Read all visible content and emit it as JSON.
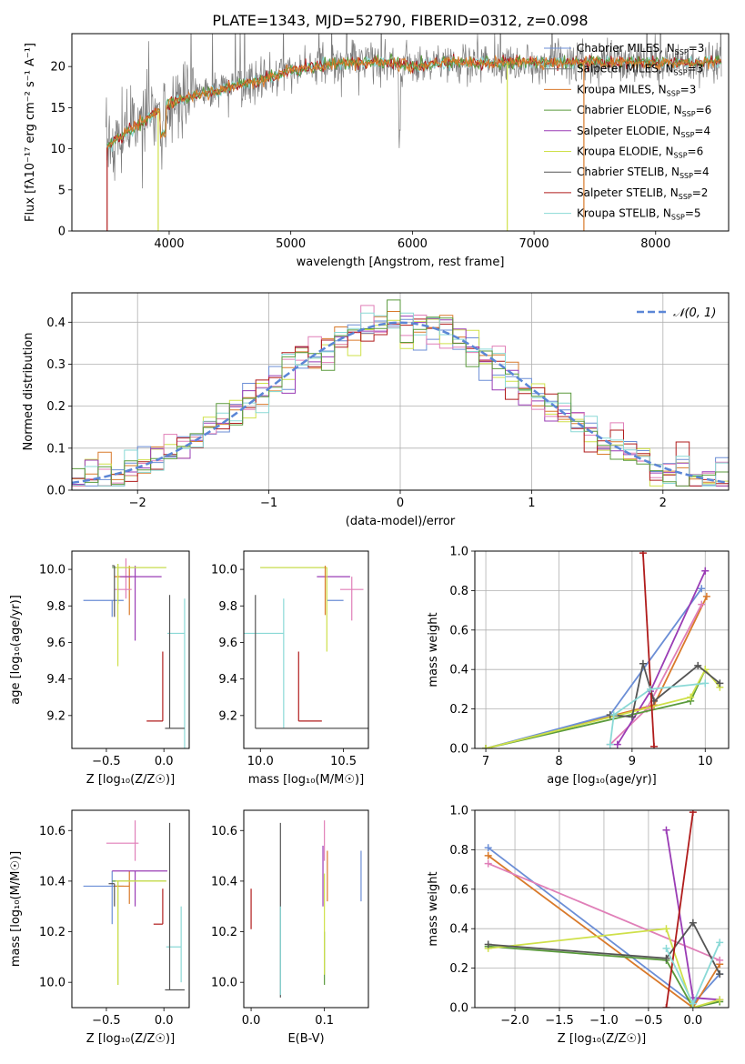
{
  "figure_title": "PLATE=1343, MJD=52790, FIBERID=0312, z=0.098",
  "colors": {
    "Chabrier MILES": "#6b8ed6",
    "Salpeter MILES": "#7b7b7b",
    "Kroupa MILES": "#d97a2b",
    "Chabrier ELODIE": "#5a9a3c",
    "Salpeter ELODIE": "#9a3cb5",
    "Kroupa ELODIE": "#cfe04a",
    "Chabrier STELIB": "#555555",
    "Salpeter STELIB": "#b01c1c",
    "Kroupa STELIB": "#8ad9d6",
    "pink": "#e07fb8",
    "normal": "#5b86d6"
  },
  "chart_data": [
    {
      "type": "line",
      "xlabel": "wavelength [Angstrom, rest frame]",
      "ylabel": "Flux [fλ10⁻¹⁷ erg cm⁻² s⁻¹ A⁻¹]",
      "xlim": [
        3200,
        8600
      ],
      "ylim": [
        0,
        24
      ],
      "xticks": [
        4000,
        5000,
        6000,
        7000,
        8000
      ],
      "yticks": [
        0,
        5,
        10,
        15,
        20
      ],
      "legend_position": "right",
      "continuum": {
        "x": [
          3480,
          3600,
          3800,
          4000,
          4200,
          4500,
          4800,
          5000,
          5200,
          5500,
          5800,
          6000,
          6300,
          6600,
          7000,
          7400,
          7800,
          8200,
          8500
        ],
        "y": [
          10,
          11.5,
          13.5,
          15.5,
          16.5,
          17.5,
          18.5,
          19.5,
          20,
          20.5,
          20.5,
          20,
          20.5,
          20.5,
          20.5,
          20.5,
          20.5,
          20.5,
          20.5
        ]
      },
      "series": [
        {
          "name": "Chabrier MILES, N$_{SSP}$=3"
        },
        {
          "name": "Salpeter MILES, N$_{SSP}$=3"
        },
        {
          "name": "Kroupa MILES, N$_{SSP}$=3"
        },
        {
          "name": "Chabrier ELODIE, N$_{SSP}$=6"
        },
        {
          "name": "Salpeter ELODIE, N$_{SSP}$=4"
        },
        {
          "name": "Kroupa ELODIE, N$_{SSP}$=6"
        },
        {
          "name": "Chabrier STELIB, N$_{SSP}$=4"
        },
        {
          "name": "Salpeter STELIB, N$_{SSP}$=2"
        },
        {
          "name": "Kroupa STELIB, N$_{SSP}$=5"
        }
      ]
    },
    {
      "type": "histogram",
      "xlabel": "(data-model)/error",
      "ylabel": "Normed distribution",
      "xlim": [
        -2.5,
        2.5
      ],
      "ylim": [
        0,
        0.47
      ],
      "xticks": [
        -2,
        -1,
        0,
        1,
        2
      ],
      "yticks": [
        0.0,
        0.1,
        0.2,
        0.3,
        0.4
      ],
      "grid": true,
      "legend": "𝒩(0, 1)",
      "legend_position": "top-right",
      "bin_width": 0.1
    },
    {
      "type": "errorbar",
      "xlabel": "Z [log₁₀(Z/Z☉)]",
      "ylabel": "age  [log₁₀(age/yr)]",
      "xlim": [
        -0.8,
        0.22
      ],
      "ylim": [
        9.02,
        10.1
      ],
      "xticks": [
        -0.5,
        0.0
      ],
      "yticks": [
        9.2,
        9.4,
        9.6,
        9.8,
        10.0
      ],
      "points": [
        {
          "color": "Chabrier MILES",
          "x": -0.45,
          "y": 9.83,
          "xerr": [
            0.25,
            0.1
          ],
          "yerr": [
            0.09,
            0.0
          ]
        },
        {
          "color": "Kroupa MILES",
          "x": -0.3,
          "y": 9.96,
          "xerr": [
            0.13,
            0.02
          ],
          "yerr": [
            0.21,
            0.06
          ]
        },
        {
          "color": "pink",
          "x": -0.33,
          "y": 9.89,
          "xerr": [
            0.1,
            0.05
          ],
          "yerr": [
            0.05,
            0.17
          ]
        },
        {
          "color": "Salpeter ELODIE",
          "x": -0.25,
          "y": 9.96,
          "xerr": [
            0.13,
            0.23
          ],
          "yerr": [
            0.35,
            0.06
          ]
        },
        {
          "color": "Chabrier ELODIE",
          "x": -0.4,
          "y": 10.01,
          "xerr": [
            0.05,
            0.42
          ],
          "yerr": [
            0.2,
            0.02
          ]
        },
        {
          "color": "Kroupa ELODIE",
          "x": -0.4,
          "y": 10.01,
          "xerr": [
            0.02,
            0.42
          ],
          "yerr": [
            0.54,
            0.02
          ]
        },
        {
          "color": "Chabrier STELIB",
          "x": -0.43,
          "y": 10.02,
          "xerr": [
            0.02,
            0.0
          ],
          "yerr": [
            0.28,
            0.0
          ]
        },
        {
          "color": "Kroupa STELIB",
          "x": 0.18,
          "y": 9.65,
          "xerr": [
            0.15,
            0.0
          ],
          "yerr": [
            0.66,
            0.19
          ]
        },
        {
          "color": "Salpeter STELIB",
          "x": -0.01,
          "y": 9.17,
          "xerr": [
            0.14,
            0.0
          ],
          "yerr": [
            0.0,
            0.38
          ]
        },
        {
          "color": "Chabrier STELIB",
          "x": 0.05,
          "y": 9.13,
          "xerr": [
            0.04,
            0.13
          ],
          "yerr": [
            0.0,
            0.73
          ]
        }
      ]
    },
    {
      "type": "errorbar",
      "xlabel": "mass [log₁₀(M/M☉)]",
      "xlim": [
        9.9,
        10.65
      ],
      "ylim": [
        9.02,
        10.1
      ],
      "xticks": [
        10.0,
        10.5
      ],
      "yticks": [
        9.2,
        9.4,
        9.6,
        9.8,
        10.0
      ],
      "points": [
        {
          "color": "Chabrier MILES",
          "x": 10.5,
          "y": 9.83,
          "xerr": [
            0.1,
            0.0
          ],
          "yerr": [
            0.0,
            0.0
          ]
        },
        {
          "color": "Salpeter ELODIE",
          "x": 10.44,
          "y": 9.96,
          "xerr": [
            0.1,
            0.1
          ],
          "yerr": [
            0.0,
            0.0
          ]
        },
        {
          "color": "Chabrier ELODIE",
          "x": 10.4,
          "y": 10.01,
          "xerr": [
            0.4,
            0.0
          ],
          "yerr": [
            0.0,
            0.0
          ]
        },
        {
          "color": "Kroupa ELODIE",
          "x": 10.4,
          "y": 10.01,
          "xerr": [
            0.4,
            0.0
          ],
          "yerr": [
            0.46,
            0.0
          ]
        },
        {
          "color": "pink",
          "x": 10.55,
          "y": 9.89,
          "xerr": [
            0.07,
            0.07
          ],
          "yerr": [
            0.17,
            0.07
          ]
        },
        {
          "color": "Kroupa MILES",
          "x": 10.39,
          "y": 9.96,
          "xerr": [
            0.0,
            0.0
          ],
          "yerr": [
            0.21,
            0.06
          ]
        },
        {
          "color": "Kroupa STELIB",
          "x": 10.14,
          "y": 9.65,
          "xerr": [
            0.4,
            0.0
          ],
          "yerr": [
            0.52,
            0.19
          ]
        },
        {
          "color": "Salpeter STELIB",
          "x": 10.23,
          "y": 9.17,
          "xerr": [
            0.0,
            0.14
          ],
          "yerr": [
            0.0,
            0.38
          ]
        },
        {
          "color": "Chabrier STELIB",
          "x": 9.97,
          "y": 9.13,
          "xerr": [
            0.0,
            0.71
          ],
          "yerr": [
            0.0,
            0.73
          ]
        }
      ]
    },
    {
      "type": "line",
      "xlabel": "age  [log₁₀(age/yr)]",
      "ylabel": "mass weight",
      "xlim": [
        6.85,
        10.32
      ],
      "ylim": [
        0,
        1
      ],
      "xticks": [
        7,
        8,
        9,
        10
      ],
      "yticks": [
        0.0,
        0.2,
        0.4,
        0.6,
        0.8,
        1.0
      ],
      "grid": true,
      "series": [
        {
          "color": "Kroupa MILES",
          "x": [
            7.0,
            9.3,
            10.02
          ],
          "y": [
            0.0,
            0.22,
            0.77
          ]
        },
        {
          "color": "Chabrier MILES",
          "x": [
            7.0,
            8.7,
            9.95
          ],
          "y": [
            0.0,
            0.17,
            0.81
          ]
        },
        {
          "color": "pink",
          "x": [
            8.7,
            9.2,
            9.95
          ],
          "y": [
            0.02,
            0.2,
            0.73
          ]
        },
        {
          "color": "Salpeter ELODIE",
          "x": [
            8.8,
            9.25,
            10.0
          ],
          "y": [
            0.02,
            0.29,
            0.9
          ]
        },
        {
          "color": "Chabrier ELODIE",
          "x": [
            7.0,
            9.8,
            10.0
          ],
          "y": [
            0.0,
            0.24,
            0.4
          ]
        },
        {
          "color": "Kroupa ELODIE",
          "x": [
            7.0,
            9.8,
            10.0,
            10.2
          ],
          "y": [
            0.0,
            0.26,
            0.4,
            0.31
          ]
        },
        {
          "color": "Chabrier STELIB",
          "x": [
            8.7,
            9.0,
            9.15,
            9.3,
            9.9,
            10.2
          ],
          "y": [
            0.17,
            0.16,
            0.43,
            0.24,
            0.42,
            0.33
          ]
        },
        {
          "color": "Salpeter STELIB",
          "x": [
            9.15,
            9.3
          ],
          "y": [
            0.99,
            0.01
          ]
        },
        {
          "color": "Kroupa STELIB",
          "x": [
            8.7,
            8.75,
            9.25,
            10.0
          ],
          "y": [
            0.02,
            0.17,
            0.3,
            0.33
          ]
        }
      ]
    },
    {
      "type": "errorbar",
      "xlabel": "Z [log₁₀(Z/Z☉)]",
      "ylabel": "mass [log₁₀(M/M☉)]",
      "xlim": [
        -0.8,
        0.22
      ],
      "ylim": [
        9.9,
        10.68
      ],
      "xticks": [
        -0.5,
        0.0
      ],
      "yticks": [
        10.0,
        10.2,
        10.4,
        10.6
      ],
      "points": [
        {
          "color": "Chabrier MILES",
          "x": -0.45,
          "y": 10.38,
          "xerr": [
            0.25,
            0.1
          ],
          "yerr": [
            0.15,
            0.06
          ]
        },
        {
          "color": "Kroupa MILES",
          "x": -0.3,
          "y": 10.38,
          "xerr": [
            0.13,
            0.0
          ],
          "yerr": [
            0.07,
            0.06
          ]
        },
        {
          "color": "pink",
          "x": -0.25,
          "y": 10.55,
          "xerr": [
            0.25,
            0.03
          ],
          "yerr": [
            0.07,
            0.09
          ]
        },
        {
          "color": "Salpeter ELODIE",
          "x": -0.25,
          "y": 10.44,
          "xerr": [
            0.2,
            0.28
          ],
          "yerr": [
            0.14,
            0.0
          ]
        },
        {
          "color": "Chabrier ELODIE",
          "x": -0.4,
          "y": 10.4,
          "xerr": [
            0.05,
            0.42
          ],
          "yerr": [
            0.41,
            0.0
          ]
        },
        {
          "color": "Kroupa ELODIE",
          "x": -0.4,
          "y": 10.4,
          "xerr": [
            0.02,
            0.42
          ],
          "yerr": [
            0.41,
            0.0
          ]
        },
        {
          "color": "Chabrier STELIB",
          "x": -0.43,
          "y": 10.39,
          "xerr": [
            0.05,
            0.0
          ],
          "yerr": [
            0.09,
            0.0
          ]
        },
        {
          "color": "Kroupa STELIB",
          "x": 0.15,
          "y": 10.14,
          "xerr": [
            0.13,
            0.0
          ],
          "yerr": [
            0.14,
            0.16
          ]
        },
        {
          "color": "Salpeter STELIB",
          "x": -0.01,
          "y": 10.23,
          "xerr": [
            0.08,
            0.0
          ],
          "yerr": [
            0.0,
            0.14
          ]
        },
        {
          "color": "Chabrier STELIB",
          "x": 0.05,
          "y": 9.97,
          "xerr": [
            0.04,
            0.13
          ],
          "yerr": [
            0.0,
            0.66
          ]
        }
      ]
    },
    {
      "type": "errorbar",
      "xlabel": "E(B-V)",
      "xlim": [
        -0.01,
        0.16
      ],
      "ylim": [
        9.9,
        10.68
      ],
      "xticks": [
        0.0,
        0.1
      ],
      "yticks": [
        10.0,
        10.2,
        10.4,
        10.6
      ],
      "points": [
        {
          "color": "Salpeter STELIB",
          "x": 0.0,
          "y": 10.29,
          "xerr": [
            0.0,
            0.0
          ],
          "yerr": [
            0.08,
            0.08
          ]
        },
        {
          "color": "Chabrier STELIB",
          "x": 0.04,
          "y": 10.2,
          "xerr": [
            0.0,
            0.0
          ],
          "yerr": [
            0.26,
            0.43
          ]
        },
        {
          "color": "Kroupa STELIB",
          "x": 0.04,
          "y": 10.1,
          "xerr": [
            0.0,
            0.0
          ],
          "yerr": [
            0.15,
            0.2
          ]
        },
        {
          "color": "pink",
          "x": 0.1,
          "y": 10.55,
          "xerr": [
            0.0,
            0.0
          ],
          "yerr": [
            0.07,
            0.09
          ]
        },
        {
          "color": "Salpeter ELODIE",
          "x": 0.098,
          "y": 10.44,
          "xerr": [
            0.0,
            0.0
          ],
          "yerr": [
            0.14,
            0.1
          ]
        },
        {
          "color": "Kroupa MILES",
          "x": 0.104,
          "y": 10.4,
          "xerr": [
            0.0,
            0.0
          ],
          "yerr": [
            0.08,
            0.12
          ]
        },
        {
          "color": "Chabrier ELODIE",
          "x": 0.1,
          "y": 10.2,
          "xerr": [
            0.0,
            0.0
          ],
          "yerr": [
            0.21,
            0.0
          ]
        },
        {
          "color": "Kroupa ELODIE",
          "x": 0.1,
          "y": 10.2,
          "xerr": [
            0.0,
            0.0
          ],
          "yerr": [
            0.17,
            0.23
          ]
        },
        {
          "color": "Chabrier MILES",
          "x": 0.15,
          "y": 10.42,
          "xerr": [
            0.0,
            0.0
          ],
          "yerr": [
            0.1,
            0.1
          ]
        }
      ]
    },
    {
      "type": "line",
      "xlabel": "Z [log₁₀(Z/Z☉)]",
      "ylabel": "mass weight",
      "xlim": [
        -2.45,
        0.4
      ],
      "ylim": [
        0,
        1
      ],
      "xticks": [
        -2.0,
        -1.5,
        -1.0,
        -0.5,
        0.0
      ],
      "yticks": [
        0.0,
        0.2,
        0.4,
        0.6,
        0.8,
        1.0
      ],
      "grid": true,
      "series": [
        {
          "color": "Chabrier MILES",
          "x": [
            -2.3,
            0.0,
            0.3
          ],
          "y": [
            0.81,
            0.02,
            0.17
          ]
        },
        {
          "color": "Kroupa MILES",
          "x": [
            -2.3,
            0.0,
            0.3
          ],
          "y": [
            0.77,
            0.0,
            0.22
          ]
        },
        {
          "color": "pink",
          "x": [
            -2.3,
            0.3
          ],
          "y": [
            0.73,
            0.24
          ]
        },
        {
          "color": "Salpeter ELODIE",
          "x": [
            -0.3,
            0.0,
            0.3
          ],
          "y": [
            0.9,
            0.05,
            0.04
          ]
        },
        {
          "color": "Chabrier ELODIE",
          "x": [
            -2.3,
            -0.3,
            0.0,
            0.3
          ],
          "y": [
            0.31,
            0.24,
            0.0,
            0.03
          ]
        },
        {
          "color": "Kroupa ELODIE",
          "x": [
            -2.3,
            -0.3,
            0.0,
            0.3
          ],
          "y": [
            0.3,
            0.4,
            0.0,
            0.04
          ]
        },
        {
          "color": "Chabrier STELIB",
          "x": [
            -2.3,
            -0.3,
            0.0,
            0.3
          ],
          "y": [
            0.32,
            0.25,
            0.43,
            0.17
          ]
        },
        {
          "color": "Salpeter STELIB",
          "x": [
            -0.3,
            0.0
          ],
          "y": [
            0.0,
            0.99
          ]
        },
        {
          "color": "Kroupa STELIB",
          "x": [
            -0.3,
            0.0,
            0.3
          ],
          "y": [
            0.3,
            0.02,
            0.33
          ]
        }
      ]
    }
  ]
}
